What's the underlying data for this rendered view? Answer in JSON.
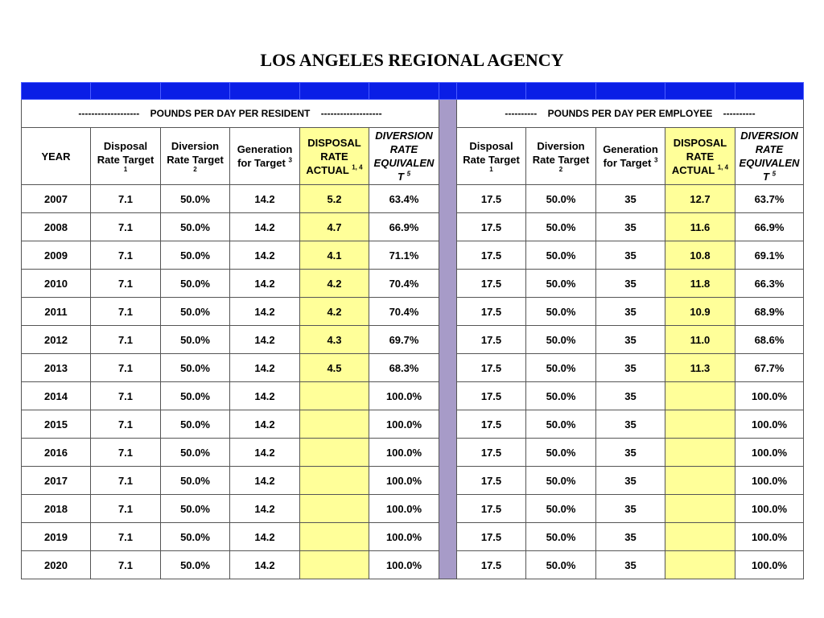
{
  "title": "LOS ANGELES REGIONAL AGENCY",
  "colors": {
    "header_bar": "#0a1ee6",
    "separator": "#a79bc8",
    "highlight": "#ffff99"
  },
  "resident_band": "-------------------    POUNDS PER DAY PER RESIDENT    -------------------",
  "employee_band": "----------    POUNDS PER DAY PER EMPLOYEE    ----------",
  "headers": {
    "year": "YEAR",
    "disposal_target_a": "Disposal",
    "disposal_target_b": "Rate Target",
    "disposal_target_note": "1",
    "diversion_target_a": "Diversion",
    "diversion_target_b": "Rate Target",
    "diversion_target_note": "2",
    "generation_a": "Generation",
    "generation_b": "for Target",
    "generation_note": "3",
    "disposal_actual_a": "DISPOSAL",
    "disposal_actual_b": "RATE",
    "disposal_actual_c": "ACTUAL",
    "disposal_actual_note": "1, 4",
    "diversion_equiv_a": "DIVERSION",
    "diversion_equiv_b": "RATE",
    "diversion_equiv_c": "EQUIVALEN",
    "diversion_equiv_d": "T",
    "diversion_equiv_note": "5"
  },
  "rows": [
    {
      "year": "2007",
      "r_disp": "7.1",
      "r_div": "50.0%",
      "r_gen": "14.2",
      "r_act": "5.2",
      "r_eq": "63.4%",
      "e_disp": "17.5",
      "e_div": "50.0%",
      "e_gen": "35",
      "e_act": "12.7",
      "e_eq": "63.7%"
    },
    {
      "year": "2008",
      "r_disp": "7.1",
      "r_div": "50.0%",
      "r_gen": "14.2",
      "r_act": "4.7",
      "r_eq": "66.9%",
      "e_disp": "17.5",
      "e_div": "50.0%",
      "e_gen": "35",
      "e_act": "11.6",
      "e_eq": "66.9%"
    },
    {
      "year": "2009",
      "r_disp": "7.1",
      "r_div": "50.0%",
      "r_gen": "14.2",
      "r_act": "4.1",
      "r_eq": "71.1%",
      "e_disp": "17.5",
      "e_div": "50.0%",
      "e_gen": "35",
      "e_act": "10.8",
      "e_eq": "69.1%"
    },
    {
      "year": "2010",
      "r_disp": "7.1",
      "r_div": "50.0%",
      "r_gen": "14.2",
      "r_act": "4.2",
      "r_eq": "70.4%",
      "e_disp": "17.5",
      "e_div": "50.0%",
      "e_gen": "35",
      "e_act": "11.8",
      "e_eq": "66.3%"
    },
    {
      "year": "2011",
      "r_disp": "7.1",
      "r_div": "50.0%",
      "r_gen": "14.2",
      "r_act": "4.2",
      "r_eq": "70.4%",
      "e_disp": "17.5",
      "e_div": "50.0%",
      "e_gen": "35",
      "e_act": "10.9",
      "e_eq": "68.9%"
    },
    {
      "year": "2012",
      "r_disp": "7.1",
      "r_div": "50.0%",
      "r_gen": "14.2",
      "r_act": "4.3",
      "r_eq": "69.7%",
      "e_disp": "17.5",
      "e_div": "50.0%",
      "e_gen": "35",
      "e_act": "11.0",
      "e_eq": "68.6%"
    },
    {
      "year": "2013",
      "r_disp": "7.1",
      "r_div": "50.0%",
      "r_gen": "14.2",
      "r_act": "4.5",
      "r_eq": "68.3%",
      "e_disp": "17.5",
      "e_div": "50.0%",
      "e_gen": "35",
      "e_act": "11.3",
      "e_eq": "67.7%"
    },
    {
      "year": "2014",
      "r_disp": "7.1",
      "r_div": "50.0%",
      "r_gen": "14.2",
      "r_act": "",
      "r_eq": "100.0%",
      "e_disp": "17.5",
      "e_div": "50.0%",
      "e_gen": "35",
      "e_act": "",
      "e_eq": "100.0%"
    },
    {
      "year": "2015",
      "r_disp": "7.1",
      "r_div": "50.0%",
      "r_gen": "14.2",
      "r_act": "",
      "r_eq": "100.0%",
      "e_disp": "17.5",
      "e_div": "50.0%",
      "e_gen": "35",
      "e_act": "",
      "e_eq": "100.0%"
    },
    {
      "year": "2016",
      "r_disp": "7.1",
      "r_div": "50.0%",
      "r_gen": "14.2",
      "r_act": "",
      "r_eq": "100.0%",
      "e_disp": "17.5",
      "e_div": "50.0%",
      "e_gen": "35",
      "e_act": "",
      "e_eq": "100.0%"
    },
    {
      "year": "2017",
      "r_disp": "7.1",
      "r_div": "50.0%",
      "r_gen": "14.2",
      "r_act": "",
      "r_eq": "100.0%",
      "e_disp": "17.5",
      "e_div": "50.0%",
      "e_gen": "35",
      "e_act": "",
      "e_eq": "100.0%"
    },
    {
      "year": "2018",
      "r_disp": "7.1",
      "r_div": "50.0%",
      "r_gen": "14.2",
      "r_act": "",
      "r_eq": "100.0%",
      "e_disp": "17.5",
      "e_div": "50.0%",
      "e_gen": "35",
      "e_act": "",
      "e_eq": "100.0%"
    },
    {
      "year": "2019",
      "r_disp": "7.1",
      "r_div": "50.0%",
      "r_gen": "14.2",
      "r_act": "",
      "r_eq": "100.0%",
      "e_disp": "17.5",
      "e_div": "50.0%",
      "e_gen": "35",
      "e_act": "",
      "e_eq": "100.0%"
    },
    {
      "year": "2020",
      "r_disp": "7.1",
      "r_div": "50.0%",
      "r_gen": "14.2",
      "r_act": "",
      "r_eq": "100.0%",
      "e_disp": "17.5",
      "e_div": "50.0%",
      "e_gen": "35",
      "e_act": "",
      "e_eq": "100.0%"
    }
  ]
}
